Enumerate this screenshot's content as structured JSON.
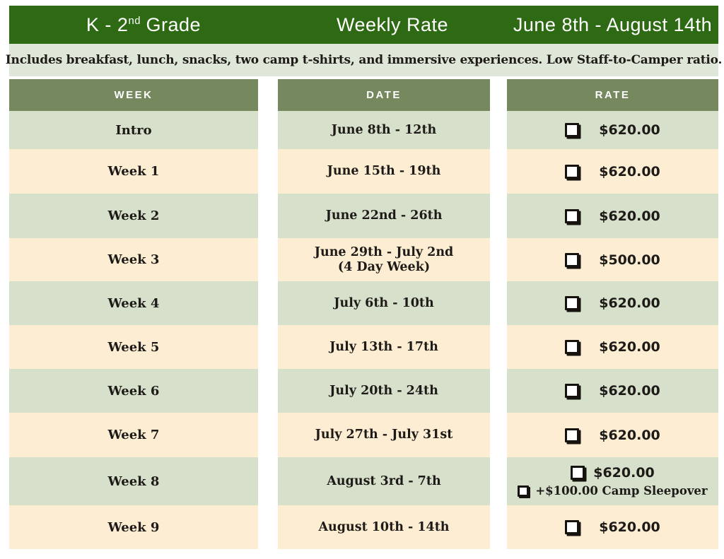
{
  "colors": {
    "title_bg": "#2d6a13",
    "column_header_bg": "#75885e",
    "row_sage": "#d6e0cb",
    "row_cream": "#fdeed3",
    "banner_bg": "#dfe7d8",
    "ink": "#1d1a17",
    "title_text": "#ffffff"
  },
  "header": {
    "grade_title": {
      "prefix": "K - 2",
      "superscript": "nd",
      "suffix": "Grade"
    },
    "center_title": "Weekly Rate",
    "date_range": "June 8th - August 14th"
  },
  "subheader": {
    "text": "Includes breakfast, lunch, snacks, two camp t-shirts, and immersive experiences. Low Staff-to-Camper ratio."
  },
  "columns": {
    "week": "WEEK",
    "date": "DATE",
    "rate": "RATE"
  },
  "rows": [
    {
      "week": "Intro",
      "date_lines": [
        "June 8th - 12th"
      ],
      "rates": [
        {
          "label": "$620.00",
          "type": "primary"
        }
      ]
    },
    {
      "week": "Week 1",
      "date_lines": [
        "June 15th - 19th"
      ],
      "rates": [
        {
          "label": "$620.00",
          "type": "primary"
        }
      ]
    },
    {
      "week": "Week 2",
      "date_lines": [
        "June 22nd - 26th"
      ],
      "rates": [
        {
          "label": "$620.00",
          "type": "primary"
        }
      ]
    },
    {
      "week": "Week 3",
      "date_lines": [
        "June 29th - July 2nd",
        "(4 Day Week)"
      ],
      "rates": [
        {
          "label": "$500.00",
          "type": "primary"
        }
      ]
    },
    {
      "week": "Week 4",
      "date_lines": [
        "July 6th - 10th"
      ],
      "rates": [
        {
          "label": "$620.00",
          "type": "primary"
        }
      ]
    },
    {
      "week": "Week 5",
      "date_lines": [
        "July 13th - 17th"
      ],
      "rates": [
        {
          "label": "$620.00",
          "type": "primary"
        }
      ]
    },
    {
      "week": "Week 6",
      "date_lines": [
        "July 20th - 24th"
      ],
      "rates": [
        {
          "label": "$620.00",
          "type": "primary"
        }
      ]
    },
    {
      "week": "Week 7",
      "date_lines": [
        "July 27th - July 31st"
      ],
      "rates": [
        {
          "label": "$620.00",
          "type": "primary"
        }
      ]
    },
    {
      "week": "Week 8",
      "date_lines": [
        "August 3rd - 7th"
      ],
      "rates": [
        {
          "label": "$620.00",
          "type": "primary"
        },
        {
          "label": "+$100.00 Camp Sleepover",
          "type": "addon"
        }
      ]
    },
    {
      "week": "Week 9",
      "date_lines": [
        "August 10th - 14th"
      ],
      "rates": [
        {
          "label": "$620.00",
          "type": "primary"
        }
      ]
    }
  ]
}
